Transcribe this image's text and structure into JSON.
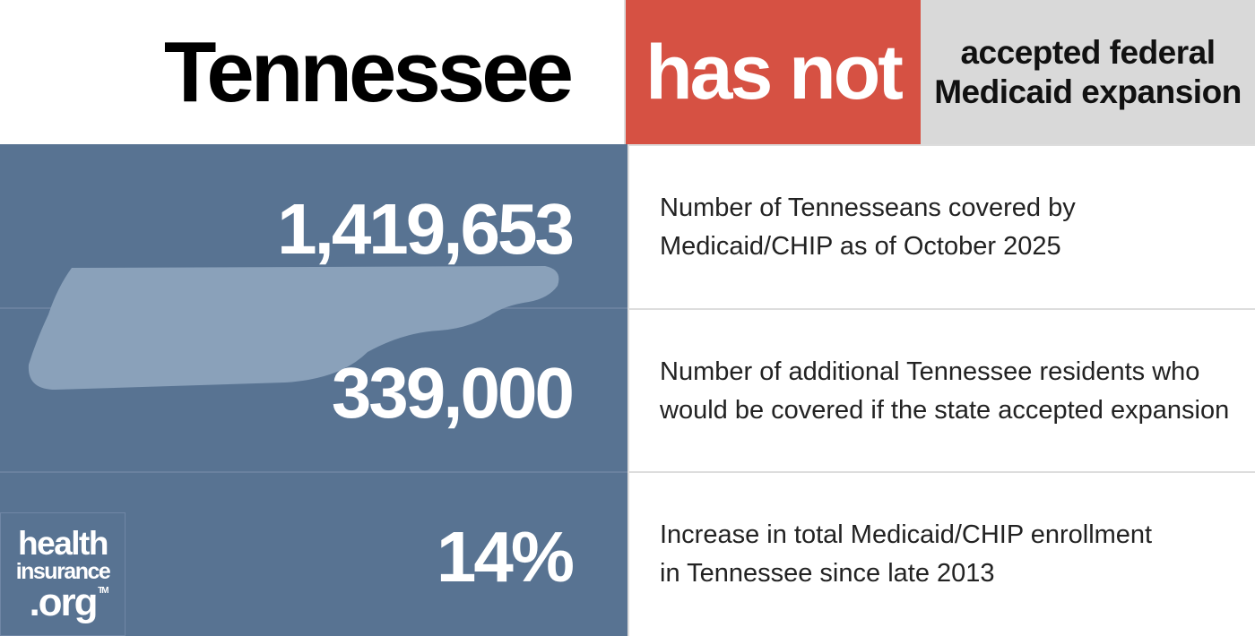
{
  "header": {
    "state_name": "Tennessee",
    "status": "has not",
    "description_lines": [
      "accepted federal",
      "Medicaid expansion"
    ]
  },
  "stats": [
    {
      "value": "1,419,653",
      "description_lines": [
        "Number of Tennesseans covered by",
        "Medicaid/CHIP as of October 2025"
      ]
    },
    {
      "value": "339,000",
      "description_lines": [
        "Number of additional Tennessee residents who",
        "would be covered if the state accepted expansion"
      ]
    },
    {
      "value": "14%",
      "description_lines": [
        "Increase in total Medicaid/CHIP enrollment",
        "in Tennessee since late 2013"
      ]
    }
  ],
  "logo": {
    "line1": "health",
    "line2": "insurance",
    "line3": ".org",
    "trademark": "TM"
  },
  "colors": {
    "status_bg": "#d65143",
    "description_bg": "#d9d9d9",
    "panel_bg": "#587392",
    "state_shape": "#8aa1ba"
  }
}
